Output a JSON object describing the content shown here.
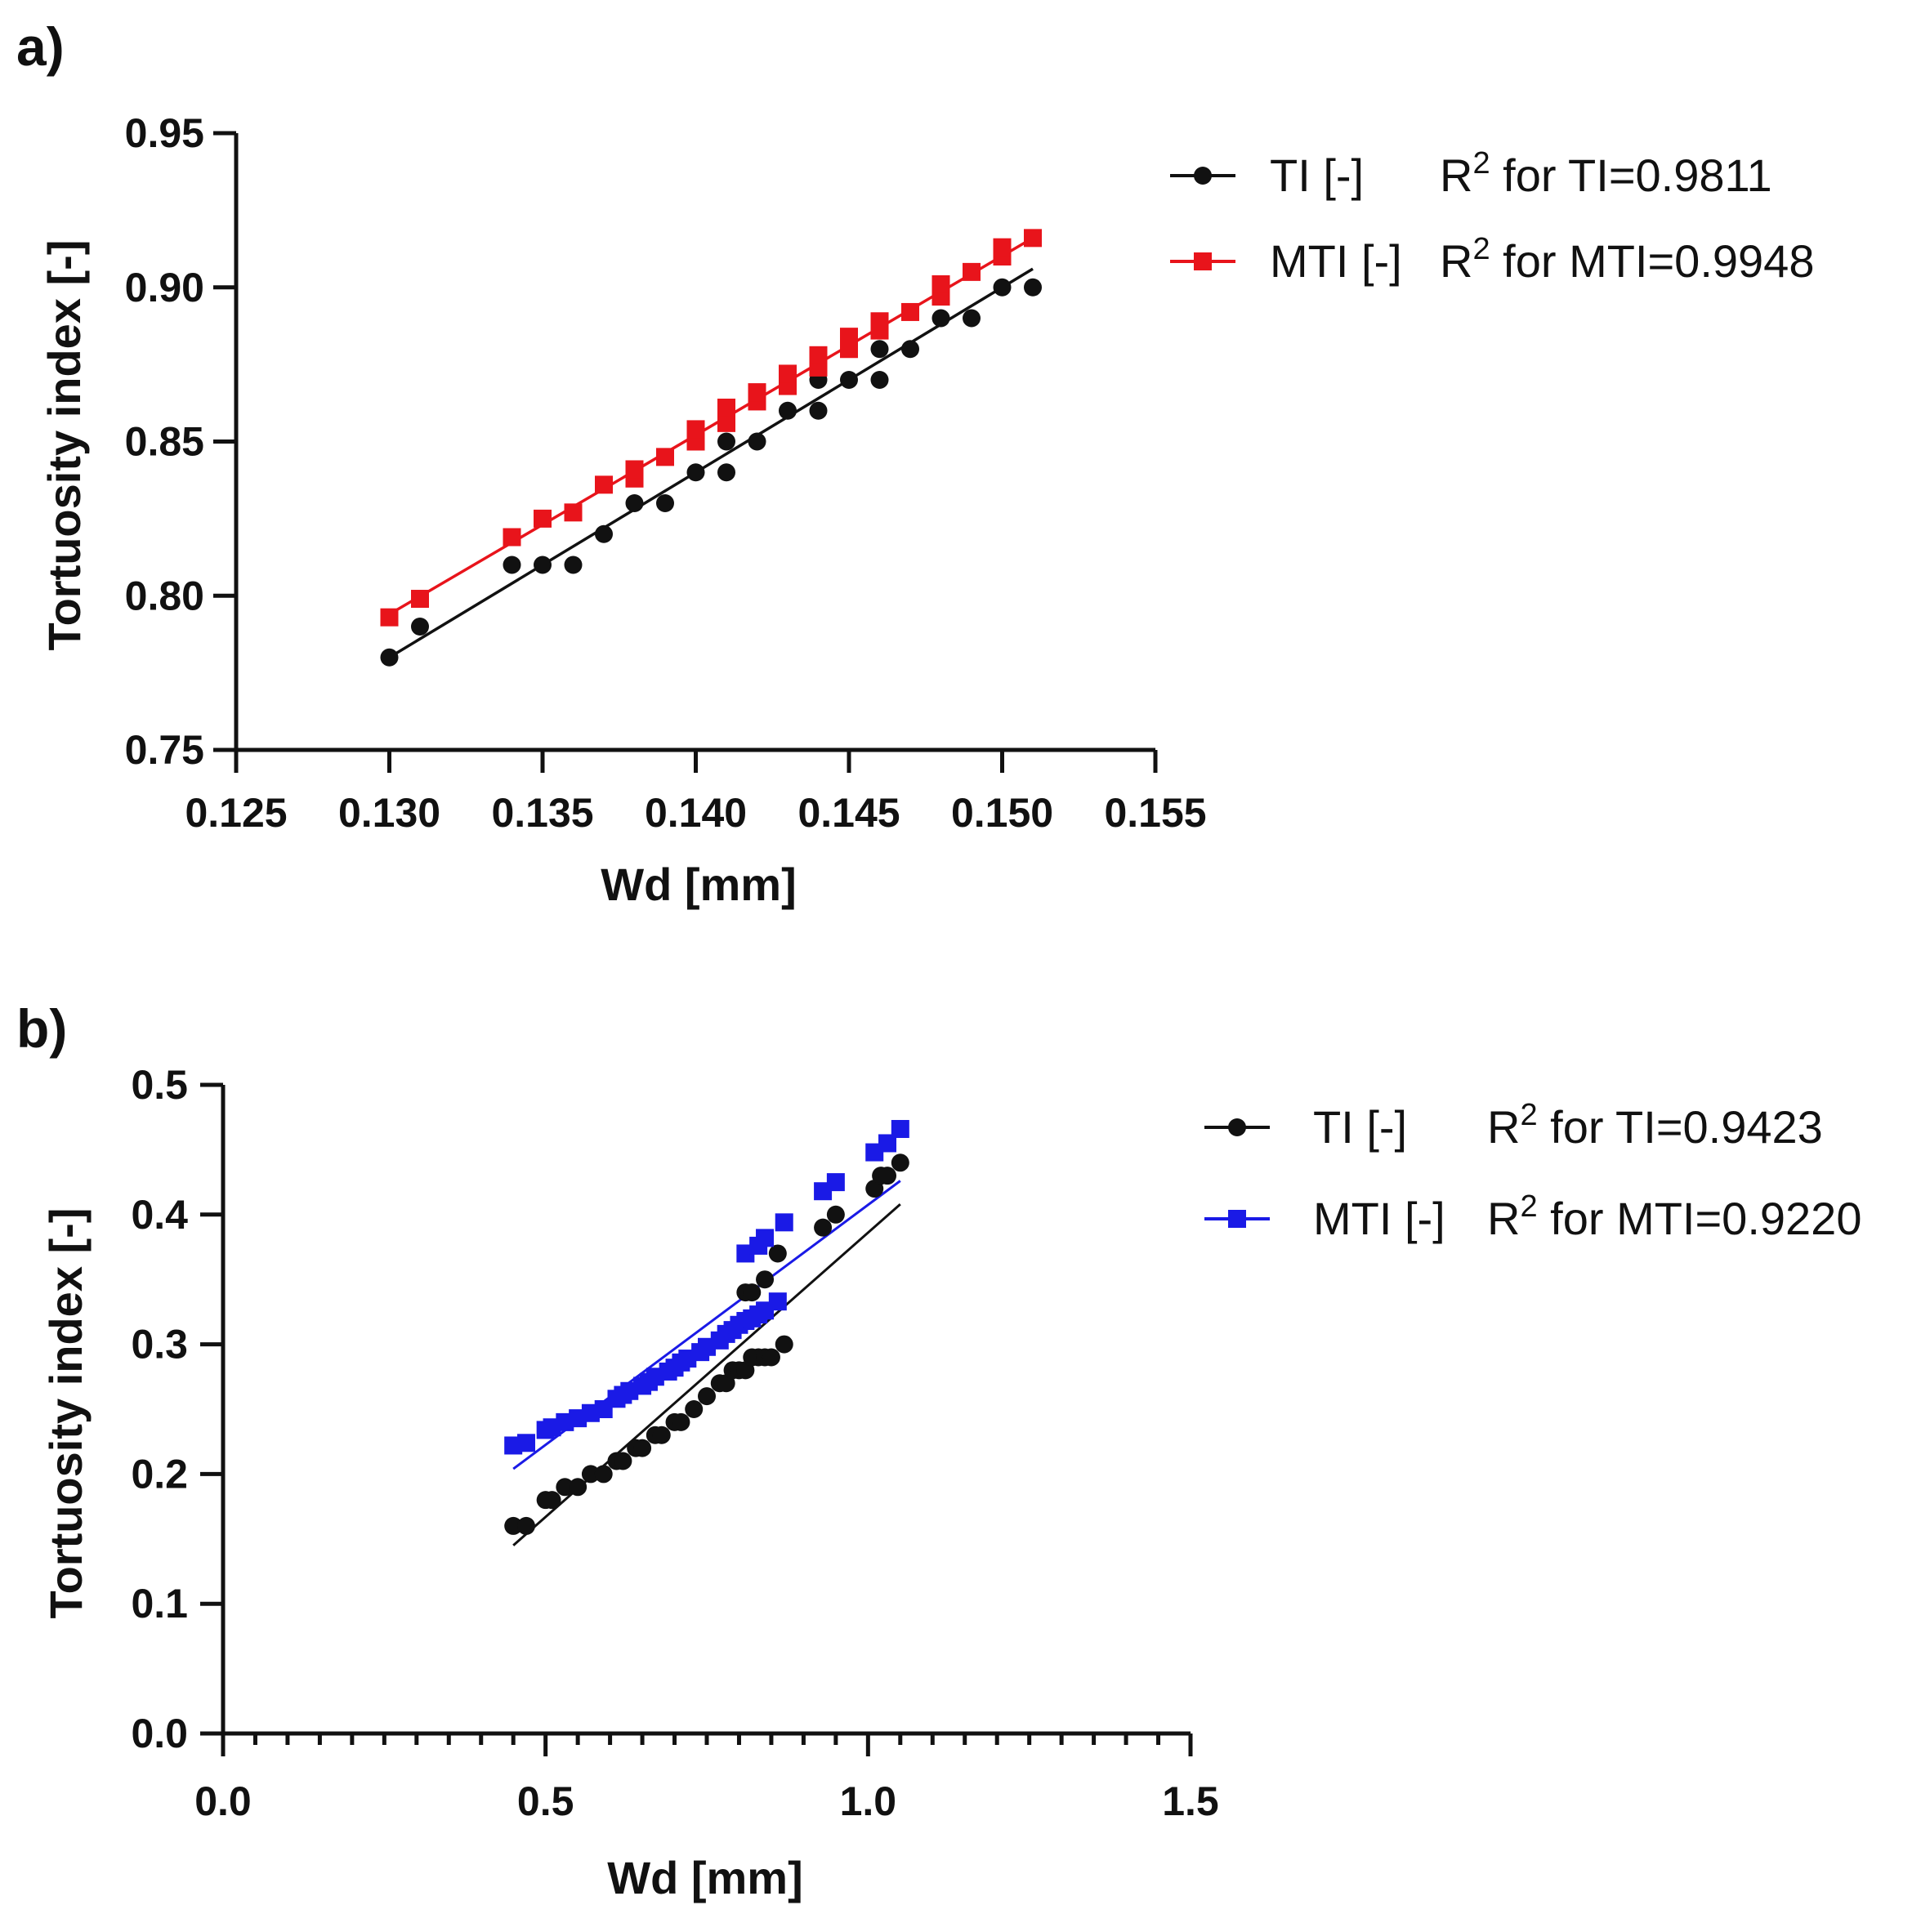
{
  "chart_data": [
    {
      "type": "scatter",
      "panel_label": "a)",
      "xlabel": "Wd [mm]",
      "ylabel": "Tortuosity index [-]",
      "xlim": [
        0.125,
        0.155
      ],
      "ylim": [
        0.75,
        0.95
      ],
      "xticks": [
        0.125,
        0.13,
        0.135,
        0.14,
        0.145,
        0.15,
        0.155
      ],
      "xtick_labels": [
        "0.125",
        "0.130",
        "0.135",
        "0.140",
        "0.145",
        "0.150",
        "0.155"
      ],
      "yticks": [
        0.75,
        0.8,
        0.85,
        0.9,
        0.95
      ],
      "ytick_labels": [
        "0.75",
        "0.80",
        "0.85",
        "0.90",
        "0.95"
      ],
      "minor_xticks": [],
      "grid": false,
      "legend_position": "top-right outside",
      "series": [
        {
          "name": "TI [-]",
          "r2_text": "for TI=0.9811",
          "color": "#111111",
          "marker": "circle",
          "x": [
            0.13,
            0.131,
            0.134,
            0.135,
            0.136,
            0.137,
            0.138,
            0.139,
            0.14,
            0.141,
            0.141,
            0.142,
            0.143,
            0.144,
            0.144,
            0.145,
            0.146,
            0.146,
            0.147,
            0.148,
            0.149,
            0.15,
            0.151
          ],
          "y": [
            0.78,
            0.79,
            0.81,
            0.81,
            0.81,
            0.82,
            0.83,
            0.83,
            0.84,
            0.84,
            0.85,
            0.85,
            0.86,
            0.86,
            0.87,
            0.87,
            0.87,
            0.88,
            0.88,
            0.89,
            0.89,
            0.9,
            0.9
          ],
          "fit": {
            "x": [
              0.13,
              0.151
            ],
            "y": [
              0.78,
              0.906
            ]
          }
        },
        {
          "name": "MTI [-]",
          "r2_text": "for MTI=0.9948",
          "color": "#e8141b",
          "marker": "square",
          "x": [
            0.13,
            0.131,
            0.134,
            0.135,
            0.136,
            0.137,
            0.138,
            0.138,
            0.139,
            0.14,
            0.14,
            0.141,
            0.141,
            0.142,
            0.142,
            0.143,
            0.143,
            0.144,
            0.144,
            0.145,
            0.145,
            0.146,
            0.146,
            0.147,
            0.148,
            0.148,
            0.149,
            0.15,
            0.15,
            0.151
          ],
          "y": [
            0.793,
            0.799,
            0.819,
            0.825,
            0.827,
            0.836,
            0.838,
            0.841,
            0.845,
            0.85,
            0.854,
            0.856,
            0.861,
            0.863,
            0.866,
            0.868,
            0.872,
            0.874,
            0.878,
            0.88,
            0.884,
            0.886,
            0.889,
            0.892,
            0.897,
            0.901,
            0.905,
            0.91,
            0.913,
            0.916
          ],
          "fit": {
            "x": [
              0.13,
              0.151
            ],
            "y": [
              0.794,
              0.916
            ]
          }
        }
      ]
    },
    {
      "type": "scatter",
      "panel_label": "b)",
      "xlabel": "Wd [mm]",
      "ylabel": "Tortuosity index [-]",
      "xlim": [
        0.0,
        1.5
      ],
      "ylim": [
        0.0,
        0.5
      ],
      "xticks": [
        0.0,
        0.5,
        1.0,
        1.5
      ],
      "xtick_labels": [
        "0.0",
        "0.5",
        "1.0",
        "1.5"
      ],
      "yticks": [
        0.0,
        0.1,
        0.2,
        0.3,
        0.4,
        0.5
      ],
      "ytick_labels": [
        "0.0",
        "0.1",
        "0.2",
        "0.3",
        "0.4",
        "0.5"
      ],
      "minor_xticks": [
        0.05,
        0.1,
        0.15,
        0.2,
        0.25,
        0.3,
        0.35,
        0.4,
        0.45,
        0.55,
        0.6,
        0.65,
        0.7,
        0.75,
        0.8,
        0.85,
        0.9,
        0.95,
        1.05,
        1.1,
        1.15,
        1.2,
        1.25,
        1.3,
        1.35,
        1.4,
        1.45
      ],
      "grid": false,
      "legend_position": "top-right outside",
      "series": [
        {
          "name": "TI [-]",
          "r2_text": "for TI=0.9423",
          "color": "#111111",
          "marker": "circle",
          "x": [
            0.45,
            0.47,
            0.5,
            0.51,
            0.53,
            0.55,
            0.57,
            0.59,
            0.61,
            0.62,
            0.64,
            0.65,
            0.67,
            0.68,
            0.7,
            0.71,
            0.73,
            0.75,
            0.77,
            0.78,
            0.79,
            0.8,
            0.81,
            0.82,
            0.83,
            0.84,
            0.85,
            0.87,
            0.81,
            0.82,
            0.84,
            0.86,
            0.93,
            0.95,
            1.01,
            1.02,
            1.03,
            1.05
          ],
          "y": [
            0.16,
            0.16,
            0.18,
            0.18,
            0.19,
            0.19,
            0.2,
            0.2,
            0.21,
            0.21,
            0.22,
            0.22,
            0.23,
            0.23,
            0.24,
            0.24,
            0.25,
            0.26,
            0.27,
            0.27,
            0.28,
            0.28,
            0.28,
            0.29,
            0.29,
            0.29,
            0.29,
            0.3,
            0.34,
            0.34,
            0.35,
            0.37,
            0.39,
            0.4,
            0.42,
            0.43,
            0.43,
            0.44
          ],
          "fit": {
            "x": [
              0.45,
              1.05
            ],
            "y": [
              0.145,
              0.408
            ]
          }
        },
        {
          "name": "MTI [-]",
          "r2_text": "for MTI=0.9220",
          "color": "#1a1ae6",
          "marker": "square",
          "x": [
            0.45,
            0.47,
            0.5,
            0.51,
            0.53,
            0.55,
            0.57,
            0.59,
            0.61,
            0.62,
            0.63,
            0.65,
            0.66,
            0.67,
            0.69,
            0.7,
            0.71,
            0.72,
            0.74,
            0.75,
            0.77,
            0.78,
            0.79,
            0.8,
            0.81,
            0.82,
            0.83,
            0.84,
            0.86,
            0.81,
            0.83,
            0.84,
            0.87,
            0.93,
            0.95,
            1.01,
            1.03,
            1.05
          ],
          "y": [
            0.222,
            0.224,
            0.234,
            0.236,
            0.24,
            0.243,
            0.247,
            0.25,
            0.258,
            0.261,
            0.264,
            0.268,
            0.271,
            0.275,
            0.279,
            0.282,
            0.286,
            0.289,
            0.294,
            0.298,
            0.303,
            0.308,
            0.311,
            0.315,
            0.318,
            0.32,
            0.323,
            0.326,
            0.333,
            0.37,
            0.376,
            0.382,
            0.394,
            0.418,
            0.425,
            0.448,
            0.455,
            0.466
          ],
          "fit": {
            "x": [
              0.45,
              1.05
            ],
            "y": [
              0.204,
              0.426
            ]
          }
        }
      ]
    }
  ]
}
